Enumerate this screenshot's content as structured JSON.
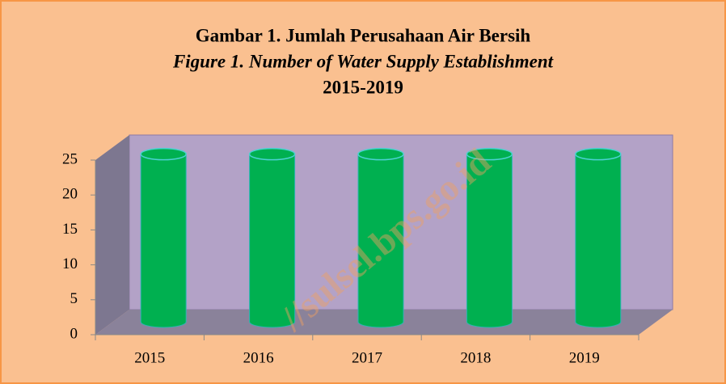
{
  "chart_data": {
    "type": "bar",
    "title": "Gambar 1. Jumlah Perusahaan Air Bersih",
    "subtitle": "Figure 1. Number of Water Supply Establishment",
    "period": "2015-2019",
    "watermark": "//sulsel.bps.go.id",
    "categories": [
      "2015",
      "2016",
      "2017",
      "2018",
      "2019"
    ],
    "values": [
      24,
      24,
      24,
      24,
      24
    ],
    "color": "#00b050",
    "ylim": [
      0,
      25
    ],
    "yticks": [
      0,
      5,
      10,
      15,
      20,
      25
    ],
    "grid": false
  }
}
